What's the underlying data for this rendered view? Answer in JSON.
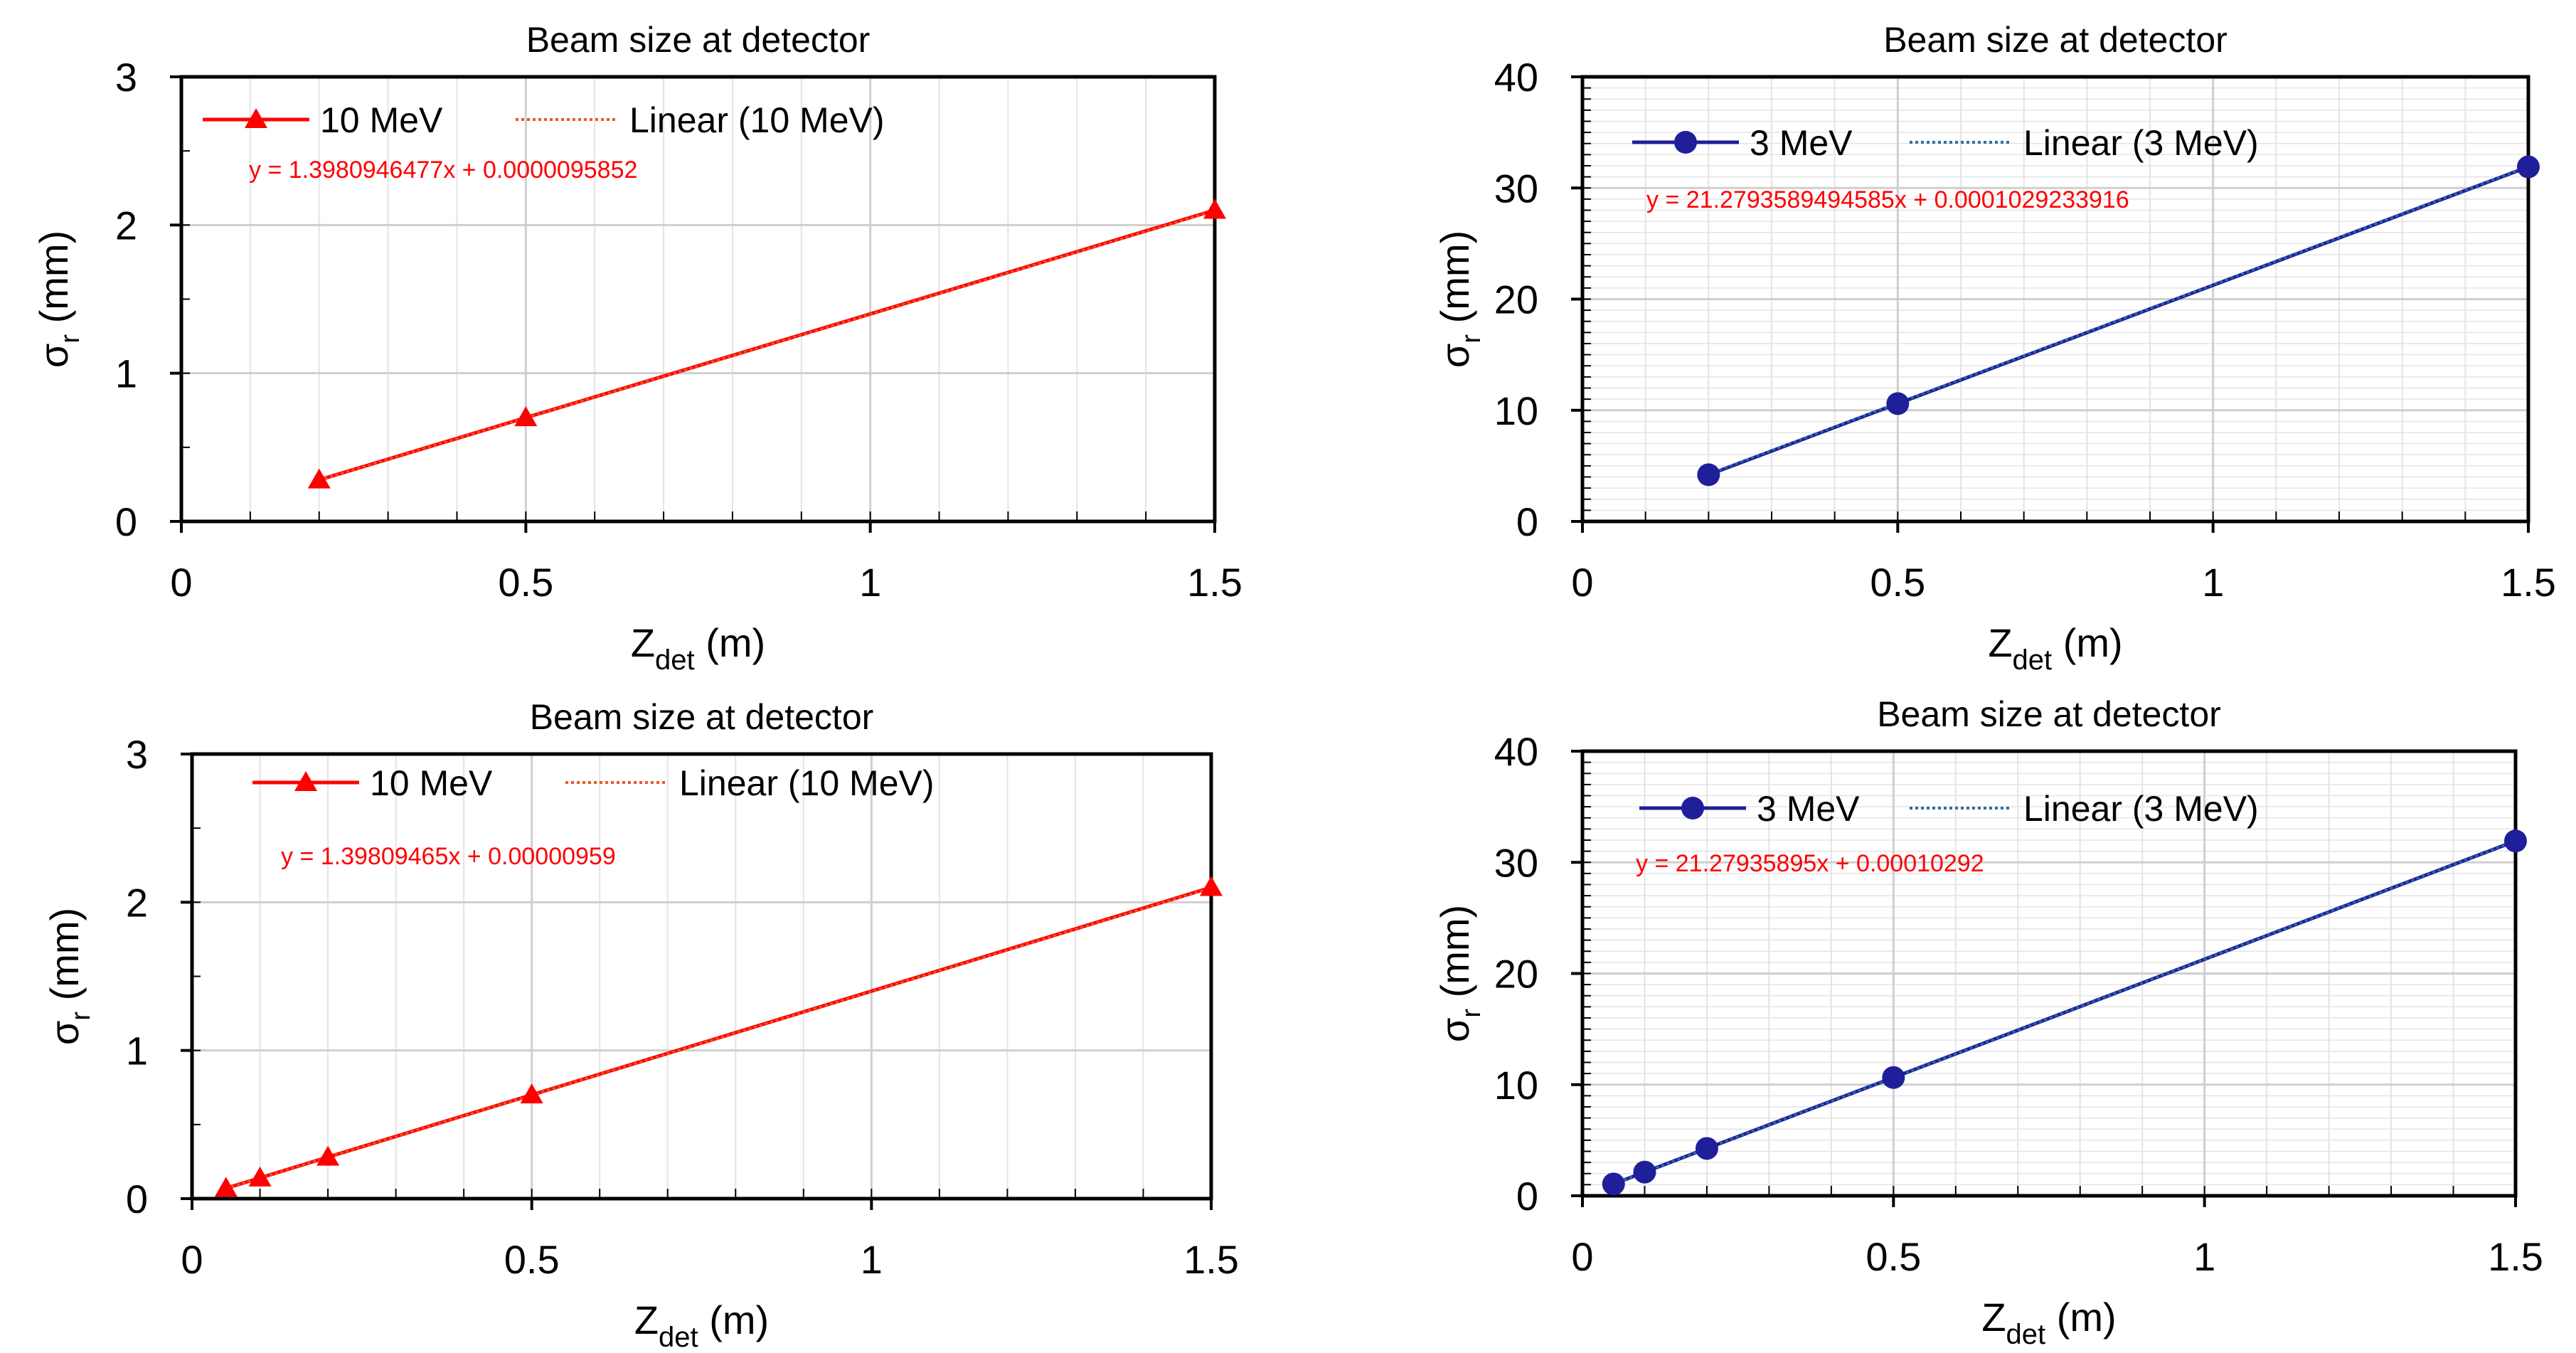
{
  "colors": {
    "red": "#FF0000",
    "red_trend": "#E85A2A",
    "navy": "#1F1F9A",
    "navy_trend": "#2E6E9E",
    "axis": "#000000",
    "grid_major": "#CFCFCF",
    "grid_minor": "#E4E4E4"
  },
  "chart_data": [
    {
      "type": "line",
      "title": "Beam size at detector",
      "xlabel_main": "Z",
      "xlabel_sub": "det",
      "xlabel_unit": " (m)",
      "ylabel_main": "σ",
      "ylabel_sub": "r",
      "ylabel_unit": " (mm)",
      "xlim": [
        0,
        1.5
      ],
      "ylim": [
        0,
        3
      ],
      "xticks": [
        0,
        0.5,
        1,
        1.5
      ],
      "xtick_labels": [
        "0",
        "0.5",
        "1",
        "1.5"
      ],
      "yticks": [
        0,
        1,
        2,
        3
      ],
      "ytick_labels": [
        "0",
        "1",
        "2",
        "3"
      ],
      "marker": "triangle",
      "color_key": "red",
      "trend_color_key": "red_trend",
      "minor_y": 0,
      "series": [
        {
          "name": "10 MeV",
          "x": [
            0.2,
            0.5,
            1.5
          ],
          "y": [
            0.28,
            0.7,
            2.1
          ]
        }
      ],
      "trend_name": "Linear (10 MeV)",
      "trend": {
        "slope": 1.3980946477,
        "intercept": 9.5852e-06
      },
      "equation": "y = 1.3980946477x + 0.0000095852"
    },
    {
      "type": "line",
      "title": "Beam size at detector",
      "xlabel_main": "Z",
      "xlabel_sub": "det",
      "xlabel_unit": " (m)",
      "ylabel_main": "σ",
      "ylabel_sub": "r",
      "ylabel_unit": " (mm)",
      "xlim": [
        0,
        1.5
      ],
      "ylim": [
        0,
        40
      ],
      "xticks": [
        0,
        0.5,
        1,
        1.5
      ],
      "xtick_labels": [
        "0",
        "0.5",
        "1",
        "1.5"
      ],
      "yticks": [
        0,
        10,
        20,
        30,
        40
      ],
      "ytick_labels": [
        "0",
        "10",
        "20",
        "30",
        "40"
      ],
      "marker": "circle",
      "color_key": "navy",
      "trend_color_key": "navy_trend",
      "minor_y": 1,
      "series": [
        {
          "name": "3 MeV",
          "x": [
            0.2,
            0.5,
            1.5
          ],
          "y": [
            4.2,
            10.6,
            31.9
          ]
        }
      ],
      "trend_name": "Linear (3 MeV)",
      "trend": {
        "slope": 21.2793589494585,
        "intercept": 0.0001029233916
      },
      "equation": "y = 21.2793589494585x + 0.0001029233916"
    },
    {
      "type": "line",
      "title": "Beam size at detector",
      "xlabel_main": "Z",
      "xlabel_sub": "det",
      "xlabel_unit": " (m)",
      "ylabel_main": "σ",
      "ylabel_sub": "r",
      "ylabel_unit": " (mm)",
      "xlim": [
        0,
        1.5
      ],
      "ylim": [
        0,
        3
      ],
      "xticks": [
        0,
        0.5,
        1,
        1.5
      ],
      "xtick_labels": [
        "0",
        "0.5",
        "1",
        "1.5"
      ],
      "yticks": [
        0,
        1,
        2,
        3
      ],
      "ytick_labels": [
        "0",
        "1",
        "2",
        "3"
      ],
      "marker": "triangle",
      "color_key": "red",
      "trend_color_key": "red_trend",
      "minor_y": 0,
      "series": [
        {
          "name": "10 MeV",
          "x": [
            0.05,
            0.1,
            0.2,
            0.5,
            1.5
          ],
          "y": [
            0.07,
            0.14,
            0.28,
            0.7,
            2.1
          ]
        }
      ],
      "trend_name": "Linear (10 MeV)",
      "trend": {
        "slope": 1.39809465,
        "intercept": 9.59e-06
      },
      "equation": "y = 1.39809465x + 0.00000959"
    },
    {
      "type": "line",
      "title": "Beam size at detector",
      "xlabel_main": "Z",
      "xlabel_sub": "det",
      "xlabel_unit": " (m)",
      "ylabel_main": "σ",
      "ylabel_sub": "r",
      "ylabel_unit": " (mm)",
      "xlim": [
        0,
        1.5
      ],
      "ylim": [
        0,
        40
      ],
      "xticks": [
        0,
        0.5,
        1,
        1.5
      ],
      "xtick_labels": [
        "0",
        "0.5",
        "1",
        "1.5"
      ],
      "yticks": [
        0,
        10,
        20,
        30,
        40
      ],
      "ytick_labels": [
        "0",
        "10",
        "20",
        "30",
        "40"
      ],
      "marker": "circle",
      "color_key": "navy",
      "trend_color_key": "navy_trend",
      "minor_y": 1,
      "series": [
        {
          "name": "3 MeV",
          "x": [
            0.05,
            0.1,
            0.2,
            0.5,
            1.5
          ],
          "y": [
            1.06,
            2.13,
            4.26,
            10.64,
            31.92
          ]
        }
      ],
      "trend_name": "Linear (3 MeV)",
      "trend": {
        "slope": 21.27935895,
        "intercept": 0.00010292
      },
      "equation": "y = 21.27935895x + 0.00010292"
    }
  ]
}
